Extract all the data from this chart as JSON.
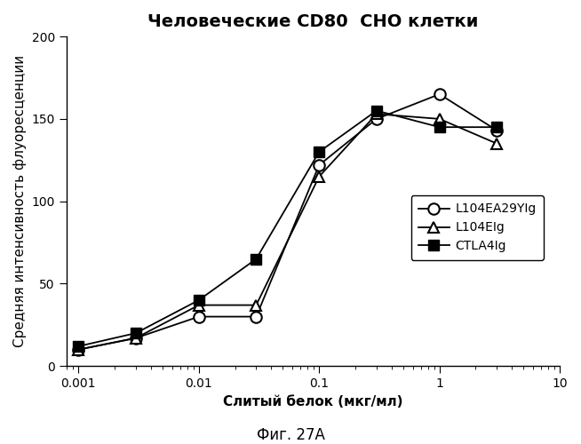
{
  "title": "Человеческие CD80  CHO клетки",
  "xlabel": "Слитый белок (мкг/мл)",
  "ylabel": "Средняя интенсивность флуоресценции",
  "caption": "Фиг. 27А",
  "ylim": [
    0,
    200
  ],
  "xlim": [
    0.0008,
    10
  ],
  "series": [
    {
      "label": "L104EA29YIg",
      "marker": "o",
      "fillstyle": "none",
      "color": "#000000",
      "linewidth": 1.3,
      "markersize": 9,
      "x": [
        0.001,
        0.003,
        0.01,
        0.03,
        0.1,
        0.3,
        1.0,
        3.0
      ],
      "y": [
        10,
        17,
        30,
        30,
        122,
        150,
        165,
        143
      ]
    },
    {
      "label": "L104EIg",
      "marker": "^",
      "fillstyle": "none",
      "color": "#000000",
      "linewidth": 1.3,
      "markersize": 8,
      "x": [
        0.001,
        0.003,
        0.01,
        0.03,
        0.1,
        0.3,
        1.0,
        3.0
      ],
      "y": [
        10,
        17,
        37,
        37,
        115,
        153,
        150,
        135
      ]
    },
    {
      "label": "CTLA4Ig",
      "marker": "s",
      "fillstyle": "full",
      "color": "#000000",
      "linewidth": 1.3,
      "markersize": 8,
      "x": [
        0.001,
        0.003,
        0.01,
        0.03,
        0.1,
        0.3,
        1.0,
        3.0
      ],
      "y": [
        12,
        20,
        40,
        65,
        130,
        155,
        145,
        145
      ]
    }
  ],
  "yticks": [
    0,
    50,
    100,
    150,
    200
  ],
  "xtick_labels": [
    "0.001",
    "0.01",
    "0.1",
    "1",
    "10"
  ],
  "xtick_values": [
    0.001,
    0.01,
    0.1,
    1,
    10
  ],
  "title_fontsize": 14,
  "label_fontsize": 11,
  "tick_fontsize": 10,
  "legend_fontsize": 10,
  "caption_fontsize": 12,
  "background_color": "#ffffff"
}
